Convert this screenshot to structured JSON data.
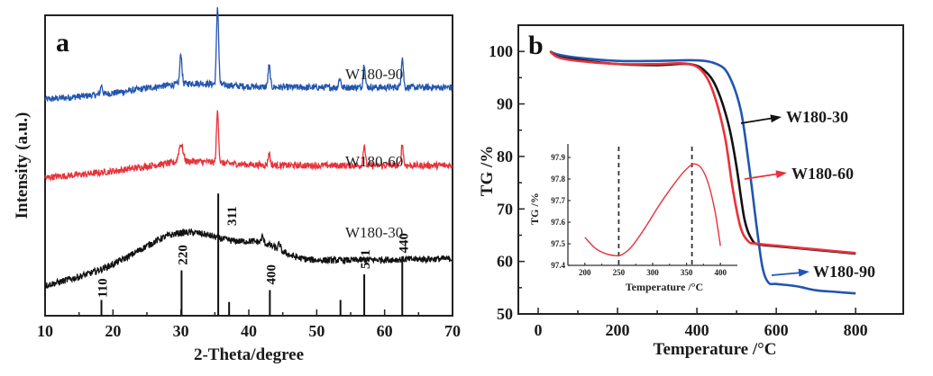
{
  "chart_data": [
    {
      "panel": "a",
      "type": "line",
      "title": "",
      "panel_label": "a",
      "xlabel": "2-Theta/degree",
      "ylabel": "Intensity (a.u.)",
      "xlim": [
        10,
        70
      ],
      "xticks": [
        10,
        20,
        30,
        40,
        50,
        60,
        70
      ],
      "xtick_labels": [
        "10",
        "20",
        "30",
        "40",
        "50",
        "60",
        "70"
      ],
      "grid": false,
      "series": [
        {
          "name": "W180-90",
          "color": "#2255b0",
          "baseline_offset": 0.72,
          "broad_background": "gently rising then flat",
          "peaks_2theta": [
            18.3,
            30.0,
            35.4,
            43.0,
            53.4,
            57.0,
            62.6
          ],
          "peak_heights": [
            0.03,
            0.1,
            0.26,
            0.07,
            0.03,
            0.08,
            0.1
          ]
        },
        {
          "name": "W180-60",
          "color": "#e8323a",
          "baseline_offset": 0.46,
          "broad_background": "gently rising then flat",
          "peaks_2theta": [
            30.0,
            35.4,
            43.0,
            57.0,
            62.6
          ],
          "peak_heights": [
            0.06,
            0.17,
            0.04,
            0.07,
            0.07
          ]
        },
        {
          "name": "W180-30",
          "color": "#111111",
          "baseline_offset": 0.17,
          "broad_background": "amorphous hump centered near 30 degrees",
          "peaks_2theta": [
            42.0,
            44.5
          ],
          "peak_heights": [
            0.02,
            0.02
          ]
        }
      ],
      "reference_pattern": {
        "positions_2theta": [
          18.3,
          30.1,
          35.5,
          37.1,
          43.1,
          53.5,
          57.0,
          62.6
        ],
        "relative_intensity": [
          0.08,
          0.23,
          0.62,
          0.07,
          0.13,
          0.08,
          0.21,
          0.29
        ],
        "hkl_labels": [
          {
            "x": 18.3,
            "label": "110"
          },
          {
            "x": 30.1,
            "label": "220"
          },
          {
            "x": 35.5,
            "label": "311"
          },
          {
            "x": 43.1,
            "label": "400"
          },
          {
            "x": 57.0,
            "label": "511"
          },
          {
            "x": 62.6,
            "label": "440"
          }
        ]
      }
    },
    {
      "panel": "b",
      "type": "line",
      "title": "",
      "panel_label": "b",
      "xlabel": "Temperature /°C",
      "ylabel": "TG /%",
      "xlim": [
        -50,
        920
      ],
      "ylim": [
        50,
        105
      ],
      "xticks": [
        0,
        200,
        400,
        600,
        800
      ],
      "xtick_labels": [
        "0",
        "200",
        "400",
        "600",
        "800"
      ],
      "yticks": [
        50,
        60,
        70,
        80,
        90,
        100
      ],
      "ytick_labels": [
        "50",
        "60",
        "70",
        "80",
        "90",
        "100"
      ],
      "grid": false,
      "series": [
        {
          "name": "W180-30",
          "color": "#111111",
          "x": [
            30,
            50,
            100,
            200,
            300,
            380,
            420,
            450,
            480,
            500,
            520,
            540,
            560,
            600,
            700,
            800
          ],
          "y": [
            100,
            99.0,
            98.4,
            97.6,
            97.4,
            97.6,
            96.3,
            93.0,
            86.0,
            78.0,
            68.0,
            64.0,
            63.2,
            62.9,
            62.2,
            61.5
          ]
        },
        {
          "name": "W180-60",
          "color": "#e8323a",
          "x": [
            30,
            50,
            100,
            200,
            300,
            370,
            410,
            440,
            470,
            490,
            510,
            530,
            550,
            600,
            700,
            800
          ],
          "y": [
            100,
            98.9,
            98.2,
            97.6,
            97.6,
            97.7,
            96.5,
            92.5,
            84.0,
            74.0,
            66.5,
            63.8,
            63.4,
            63.0,
            62.3,
            61.6
          ]
        },
        {
          "name": "W180-90",
          "color": "#2255b0",
          "x": [
            30,
            50,
            100,
            200,
            300,
            400,
            450,
            480,
            510,
            530,
            550,
            565,
            580,
            600,
            650,
            700,
            750,
            800
          ],
          "y": [
            100,
            99.4,
            98.8,
            98.2,
            98.2,
            98.3,
            97.6,
            95.5,
            89.0,
            79.0,
            67.0,
            59.0,
            56.0,
            55.7,
            55.3,
            54.5,
            54.2,
            53.9
          ]
        }
      ],
      "annotations": [
        {
          "text": "W180-30",
          "color": "#111111",
          "arrow": true
        },
        {
          "text": "W180-60",
          "color": "#e8323a",
          "arrow": true
        },
        {
          "text": "W180-90",
          "color": "#2255b0",
          "arrow": true
        }
      ],
      "inset": {
        "type": "line",
        "xlabel": "Temperature /°C",
        "ylabel": "TG /%",
        "xlim": [
          175,
          425
        ],
        "ylim": [
          97.4,
          97.95
        ],
        "xticks": [
          200,
          250,
          300,
          350,
          400
        ],
        "xtick_labels": [
          "200",
          "250",
          "300",
          "350",
          "400"
        ],
        "yticks": [
          97.4,
          97.5,
          97.6,
          97.7,
          97.8,
          97.9
        ],
        "ytick_labels": [
          "97.4",
          "97.5",
          "97.6",
          "97.7",
          "97.8",
          "97.9"
        ],
        "series": [
          {
            "name": "W180-60 (inset)",
            "color": "#e8323a",
            "x": [
              200,
              215,
              230,
              245,
              255,
              270,
              290,
              310,
              330,
              345,
              355,
              362,
              372,
              382,
              392,
              400
            ],
            "y": [
              97.53,
              97.48,
              97.455,
              97.445,
              97.45,
              97.49,
              97.58,
              97.68,
              97.77,
              97.83,
              97.86,
              97.87,
              97.85,
              97.78,
              97.65,
              97.49
            ]
          }
        ],
        "vlines": [
          {
            "x": 250,
            "style": "dashed"
          },
          {
            "x": 358,
            "style": "dashed"
          }
        ]
      }
    }
  ]
}
